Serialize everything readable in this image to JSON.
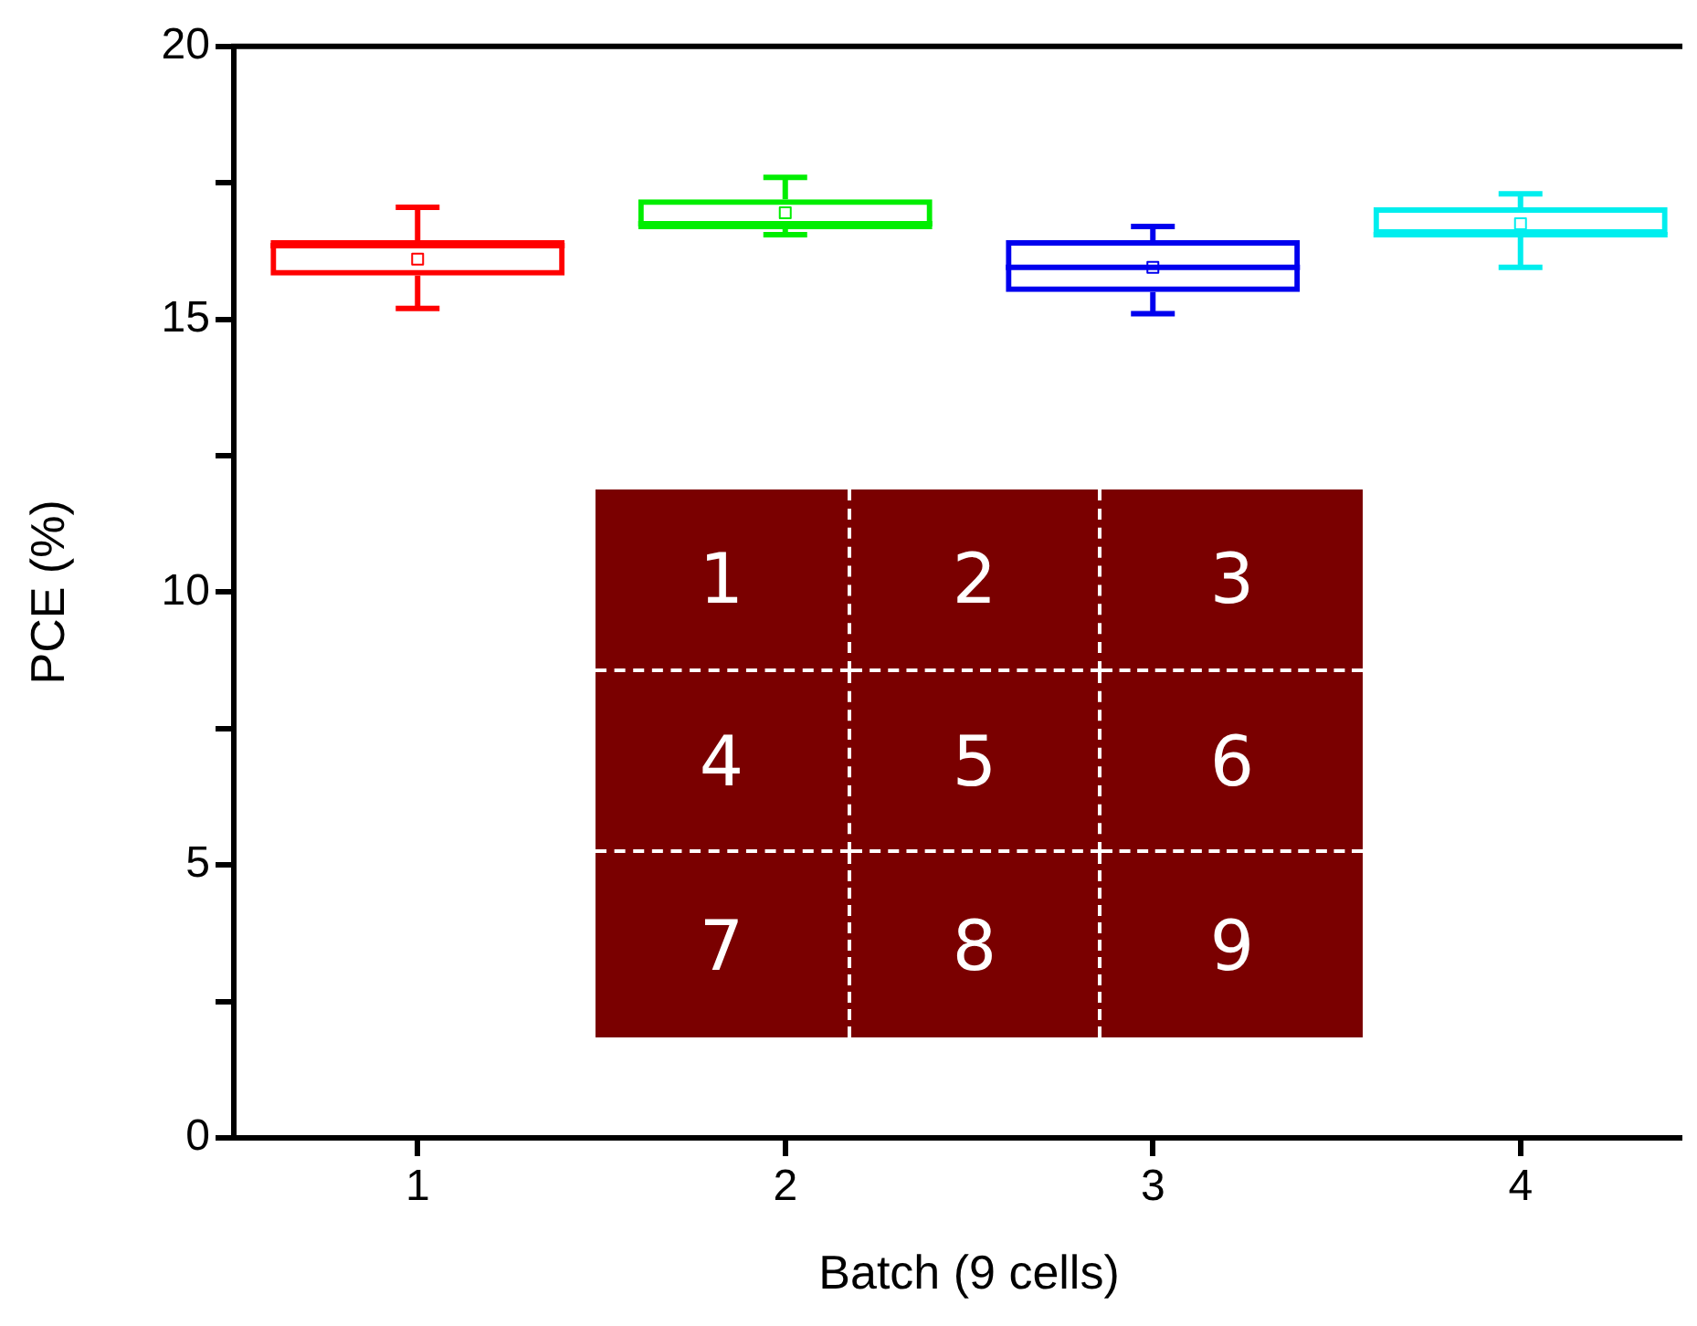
{
  "chart_data": {
    "type": "box",
    "xlabel": "Batch (9 cells)",
    "ylabel": "PCE (%)",
    "categories": [
      "1",
      "2",
      "3",
      "4"
    ],
    "colors": [
      "#ff0000",
      "#00ee00",
      "#0000ee",
      "#00eeee"
    ],
    "boxes": [
      {
        "low": 15.2,
        "q1": 15.8,
        "median": 16.35,
        "q3": 16.45,
        "high": 17.05,
        "mean": 16.1
      },
      {
        "low": 16.55,
        "q1": 16.65,
        "median": 16.75,
        "q3": 17.2,
        "high": 17.6,
        "mean": 16.95
      },
      {
        "low": 15.1,
        "q1": 15.5,
        "median": 15.95,
        "q3": 16.45,
        "high": 16.7,
        "mean": 15.95
      },
      {
        "low": 15.95,
        "q1": 16.55,
        "median": 16.55,
        "q3": 17.05,
        "high": 17.3,
        "mean": 16.75
      }
    ],
    "ylim": [
      0,
      20
    ],
    "yticks": [
      0,
      {
        "value": 2.5,
        "label": null
      },
      5,
      {
        "value": 7.5,
        "label": null
      },
      10,
      {
        "value": 12.5,
        "label": null
      },
      15,
      {
        "value": 17.5,
        "label": null
      },
      20
    ],
    "grid": false,
    "legend": false,
    "annotations": [
      "1",
      "2",
      "3",
      "4",
      "5",
      "6",
      "7",
      "8",
      "9"
    ]
  }
}
